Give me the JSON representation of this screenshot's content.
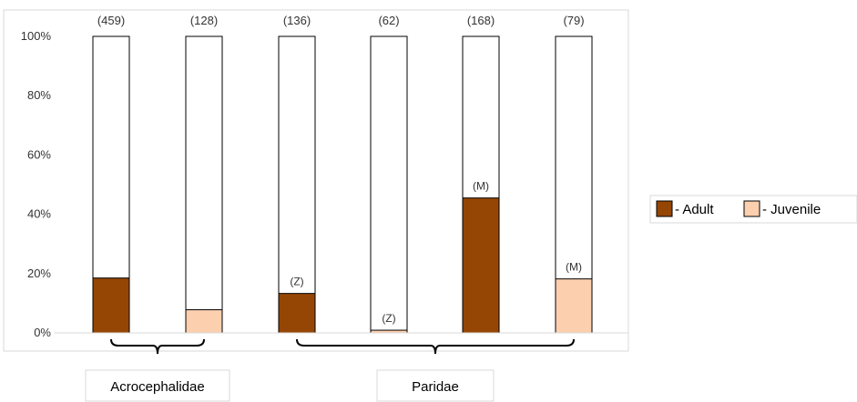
{
  "chart_data": {
    "type": "bar",
    "stacked": true,
    "percent_scale": true,
    "categories": [
      "Acrocephalidae adult",
      "Acrocephalidae juvenile",
      "Paridae adult",
      "Paridae juvenile",
      "Paridae adult",
      "Paridae juvenile"
    ],
    "bars": [
      {
        "count_label": "(459)",
        "type": "Adult",
        "value": 18.5,
        "mark": ""
      },
      {
        "count_label": "(128)",
        "type": "Juvenile",
        "value": 7.8,
        "mark": ""
      },
      {
        "count_label": "(136)",
        "type": "Adult",
        "value": 13.3,
        "mark": "(Z)"
      },
      {
        "count_label": "(62)",
        "type": "Juvenile",
        "value": 0.9,
        "mark": "(Z)"
      },
      {
        "count_label": "(168)",
        "type": "Adult",
        "value": 45.5,
        "mark": "(M)"
      },
      {
        "count_label": "(79)",
        "type": "Juvenile",
        "value": 18.2,
        "mark": "(M)"
      }
    ],
    "groups": [
      {
        "label": "Acrocephalidae",
        "bar_indices": [
          0,
          1
        ]
      },
      {
        "label": "Paridae",
        "bar_indices": [
          2,
          3,
          4,
          5
        ]
      }
    ],
    "ylim": [
      0,
      100
    ],
    "yticks": [
      "0%",
      "20%",
      "40%",
      "60%",
      "80%",
      "100%"
    ],
    "legend": {
      "position": "right",
      "entries": [
        {
          "label": "- Adult",
          "type": "Adult"
        },
        {
          "label": "- Juvenile",
          "type": "Juvenile"
        }
      ]
    },
    "colors": {
      "Adult": "#954604",
      "Juvenile": "#FCCFAF",
      "empty": "#ffffff",
      "outline": "#000000"
    },
    "grid": false
  }
}
